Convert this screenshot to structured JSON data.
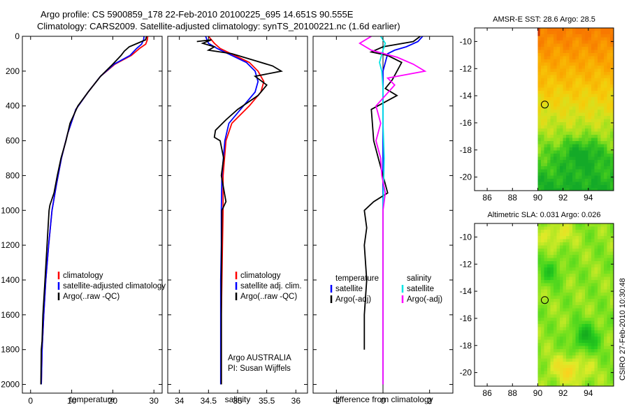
{
  "header": {
    "line1": "Argo profile: CS 5900859_178 22-Feb-2010 20100225_695 14.651S 90.555E",
    "line2": "Climatology: CARS2009. Satellite-adjusted climatology: synTS_20100221.nc (1.6d earlier)"
  },
  "colors": {
    "climatology": "#ff0000",
    "satellite": "#0000ff",
    "argo": "#000000",
    "diff_salinity_sat": "#00e5e5",
    "diff_salinity_argo": "#ff00ff"
  },
  "credit": "CSIRO 27-Feb-2010 10:30:48",
  "chart_data": [
    {
      "type": "line",
      "id": "temperature",
      "xlabel": "temperature",
      "ylabel": "",
      "xlim": [
        -2,
        32
      ],
      "ylim": [
        2050,
        0
      ],
      "xticks": [
        0,
        10,
        20,
        30
      ],
      "yticks": [
        0,
        200,
        400,
        600,
        800,
        1000,
        1200,
        1400,
        1600,
        1800,
        2000
      ],
      "legend": [
        "climatology",
        "satellite-adjusted climatology",
        "Argo(..raw -QC)"
      ],
      "series": [
        {
          "name": "climatology",
          "color": "#ff0000",
          "points": [
            [
              28.5,
              0
            ],
            [
              28.4,
              20
            ],
            [
              28.0,
              45
            ],
            [
              26.5,
              70
            ],
            [
              24.5,
              110
            ],
            [
              20.5,
              160
            ],
            [
              17,
              230
            ],
            [
              14,
              320
            ],
            [
              11,
              420
            ],
            [
              9,
              560
            ],
            [
              7.5,
              700
            ],
            [
              6.3,
              850
            ],
            [
              5.2,
              1000
            ],
            [
              4.4,
              1200
            ],
            [
              3.7,
              1400
            ],
            [
              3.2,
              1600
            ],
            [
              2.8,
              1800
            ],
            [
              2.6,
              2000
            ]
          ]
        },
        {
          "name": "satellite",
          "color": "#0000ff",
          "points": [
            [
              27.6,
              0
            ],
            [
              27.5,
              20
            ],
            [
              27.0,
              45
            ],
            [
              25.8,
              70
            ],
            [
              24.2,
              110
            ],
            [
              20.3,
              160
            ],
            [
              17,
              230
            ],
            [
              14,
              320
            ],
            [
              11,
              420
            ],
            [
              9,
              560
            ],
            [
              7.5,
              700
            ],
            [
              6.3,
              850
            ],
            [
              5.2,
              1000
            ],
            [
              4.4,
              1200
            ],
            [
              3.7,
              1400
            ],
            [
              3.2,
              1600
            ],
            [
              2.8,
              1800
            ],
            [
              2.6,
              2000
            ]
          ]
        },
        {
          "name": "Argo",
          "color": "#000000",
          "points": [
            [
              28.2,
              0
            ],
            [
              28.0,
              20
            ],
            [
              26,
              40
            ],
            [
              24,
              60
            ],
            [
              22.8,
              85
            ],
            [
              22,
              110
            ],
            [
              20,
              160
            ],
            [
              17,
              230
            ],
            [
              14,
              320
            ],
            [
              11.5,
              400
            ],
            [
              9.6,
              500
            ],
            [
              8.6,
              600
            ],
            [
              7.4,
              700
            ],
            [
              6.5,
              800
            ],
            [
              5.7,
              900
            ],
            [
              4.7,
              970
            ],
            [
              4.5,
              1000
            ],
            [
              4.0,
              1200
            ],
            [
              3.5,
              1400
            ],
            [
              3.0,
              1600
            ],
            [
              2.8,
              1750
            ],
            [
              2.6,
              1800
            ],
            [
              2.5,
              2000
            ]
          ]
        }
      ]
    },
    {
      "type": "line",
      "id": "salinity",
      "xlabel": "salinity",
      "xlim": [
        33.8,
        36.2
      ],
      "ylim": [
        2050,
        0
      ],
      "xticks": [
        34,
        34.5,
        35,
        35.5,
        36
      ],
      "legend": [
        "climatology",
        "satellite adj. clim.",
        "Argo(..raw -QC)"
      ],
      "annotation": [
        "Argo AUSTRALIA",
        "PI: Susan Wijffels"
      ],
      "series": [
        {
          "name": "climatology",
          "color": "#ff0000",
          "points": [
            [
              34.5,
              0
            ],
            [
              34.6,
              40
            ],
            [
              34.7,
              70
            ],
            [
              34.95,
              110
            ],
            [
              35.2,
              150
            ],
            [
              35.35,
              200
            ],
            [
              35.45,
              260
            ],
            [
              35.4,
              320
            ],
            [
              35.2,
              400
            ],
            [
              34.9,
              500
            ],
            [
              34.8,
              600
            ],
            [
              34.75,
              800
            ],
            [
              34.75,
              1000
            ],
            [
              34.74,
              1200
            ],
            [
              34.73,
              1400
            ],
            [
              34.72,
              1600
            ],
            [
              34.72,
              1800
            ],
            [
              34.72,
              2000
            ]
          ]
        },
        {
          "name": "satellite",
          "color": "#0000ff",
          "points": [
            [
              34.45,
              0
            ],
            [
              34.5,
              40
            ],
            [
              34.65,
              70
            ],
            [
              34.9,
              110
            ],
            [
              35.15,
              150
            ],
            [
              35.3,
              200
            ],
            [
              35.35,
              260
            ],
            [
              35.3,
              320
            ],
            [
              35.1,
              400
            ],
            [
              34.85,
              500
            ],
            [
              34.78,
              600
            ],
            [
              34.73,
              800
            ],
            [
              34.72,
              1000
            ],
            [
              34.72,
              1200
            ],
            [
              34.71,
              1400
            ],
            [
              34.71,
              1600
            ],
            [
              34.71,
              1800
            ],
            [
              34.71,
              2000
            ]
          ]
        },
        {
          "name": "Argo",
          "color": "#000000",
          "points": [
            [
              34.3,
              30
            ],
            [
              34.55,
              20
            ],
            [
              34.4,
              40
            ],
            [
              34.6,
              60
            ],
            [
              34.5,
              80
            ],
            [
              34.9,
              100
            ],
            [
              35.3,
              140
            ],
            [
              35.6,
              170
            ],
            [
              35.75,
              200
            ],
            [
              35.3,
              230
            ],
            [
              35.5,
              280
            ],
            [
              35.35,
              340
            ],
            [
              35.0,
              420
            ],
            [
              34.8,
              480
            ],
            [
              34.62,
              540
            ],
            [
              34.6,
              580
            ],
            [
              34.7,
              600
            ],
            [
              34.76,
              700
            ],
            [
              34.72,
              800
            ],
            [
              34.8,
              950
            ],
            [
              34.73,
              1000
            ],
            [
              34.72,
              1400
            ],
            [
              34.72,
              1800
            ],
            [
              34.72,
              2000
            ]
          ]
        }
      ]
    },
    {
      "type": "line",
      "id": "difference",
      "xlabel": "difference from climatology",
      "xlim": [
        -3,
        3
      ],
      "ylim": [
        2050,
        0
      ],
      "xticks": [
        -2,
        0,
        2
      ],
      "legend_left_title": "temperature",
      "legend_right_title": "salinity",
      "legend_left": [
        "satellite",
        "Argo(-adj)"
      ],
      "legend_right": [
        "satellite",
        "Argo(-adj)"
      ],
      "series": [
        {
          "name": "temperature satellite",
          "color": "#0000ff",
          "points": [
            [
              1.7,
              0
            ],
            [
              1.5,
              30
            ],
            [
              1.0,
              60
            ],
            [
              0.5,
              80
            ],
            [
              0.2,
              100
            ],
            [
              0,
              200
            ],
            [
              0,
              400
            ],
            [
              0,
              1000
            ],
            [
              0,
              2000
            ]
          ]
        },
        {
          "name": "temperature Argo(-adj)",
          "color": "#000000",
          "points": [
            [
              1.6,
              0
            ],
            [
              1.3,
              30
            ],
            [
              0,
              60
            ],
            [
              -0.5,
              90
            ],
            [
              0.2,
              110
            ],
            [
              0.8,
              150
            ],
            [
              0.6,
              200
            ],
            [
              0.4,
              250
            ],
            [
              0.1,
              300
            ],
            [
              0.6,
              340
            ],
            [
              -0.5,
              420
            ],
            [
              -0.4,
              600
            ],
            [
              -0.2,
              700
            ],
            [
              0,
              800
            ],
            [
              0.2,
              900
            ],
            [
              -0.4,
              950
            ],
            [
              -0.8,
              1000
            ],
            [
              -0.7,
              1100
            ],
            [
              -0.8,
              1200
            ],
            [
              -0.7,
              1400
            ],
            [
              -0.8,
              1600
            ],
            [
              -0.8,
              1800
            ]
          ]
        },
        {
          "name": "salinity satellite",
          "color": "#00e5e5",
          "points": [
            [
              -0.1,
              0
            ],
            [
              0.1,
              40
            ],
            [
              0,
              80
            ],
            [
              -0.15,
              150
            ],
            [
              -0.05,
              200
            ],
            [
              0,
              300
            ],
            [
              0,
              500
            ],
            [
              0.05,
              700
            ],
            [
              0,
              1000
            ],
            [
              0,
              2000
            ]
          ]
        },
        {
          "name": "salinity Argo(-adj)",
          "color": "#ff00ff",
          "points": [
            [
              -0.5,
              0
            ],
            [
              -1.0,
              40
            ],
            [
              -0.5,
              80
            ],
            [
              0.6,
              120
            ],
            [
              1.3,
              160
            ],
            [
              1.8,
              200
            ],
            [
              0.2,
              240
            ],
            [
              0.5,
              280
            ],
            [
              0.1,
              340
            ],
            [
              -0.3,
              400
            ],
            [
              -0.1,
              500
            ],
            [
              -0.3,
              600
            ],
            [
              -0.1,
              700
            ],
            [
              -0.05,
              800
            ],
            [
              0.1,
              900
            ],
            [
              0,
              1000
            ],
            [
              0,
              1400
            ],
            [
              0,
              2000
            ]
          ]
        }
      ]
    },
    {
      "type": "heatmap",
      "id": "sst_map",
      "title": "AMSR-E SST: 28.6 Argo: 28.5",
      "xlim": [
        85,
        96
      ],
      "ylim": [
        -21,
        -9
      ],
      "xticks": [
        86,
        88,
        90,
        92,
        94
      ],
      "yticks": [
        -10,
        -12,
        -14,
        -16,
        -18,
        -20
      ],
      "data_xlim": [
        90,
        96
      ],
      "marker": [
        90.555,
        -14.651
      ]
    },
    {
      "type": "heatmap",
      "id": "sla_map",
      "title": "Altimetric SLA: 0.031 Argo: 0.026",
      "xlim": [
        85,
        96
      ],
      "ylim": [
        -21,
        -9
      ],
      "xticks": [
        86,
        88,
        90,
        92,
        94
      ],
      "yticks": [
        -10,
        -12,
        -14,
        -16,
        -18,
        -20
      ],
      "data_xlim": [
        90,
        96
      ],
      "marker": [
        90.555,
        -14.651
      ]
    }
  ]
}
